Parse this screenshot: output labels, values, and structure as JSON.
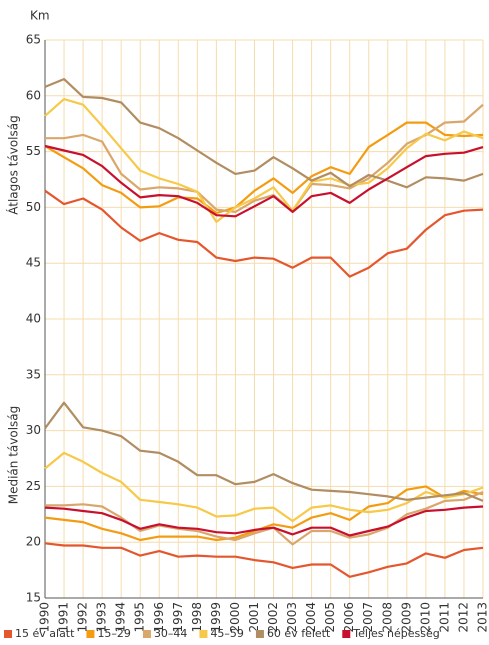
{
  "chart_data": {
    "type": "line",
    "y_unit": "Km",
    "ylabels": [
      "Átlagos távolság",
      "Medián távolság"
    ],
    "categories": [
      1990,
      1991,
      1992,
      1993,
      1994,
      1995,
      1996,
      1997,
      1998,
      1999,
      2000,
      2001,
      2002,
      2003,
      2004,
      2005,
      2006,
      2007,
      2008,
      2009,
      2010,
      2011,
      2012,
      2013
    ],
    "ylim": [
      15,
      65
    ],
    "yticks": [
      15,
      20,
      25,
      30,
      35,
      40,
      45,
      50,
      55,
      60,
      65
    ],
    "grid": true,
    "legend": "bottom",
    "series": [
      {
        "name": "15 év alatt",
        "color": "#e4572e",
        "values": [
          51.5,
          50.3,
          50.8,
          49.8,
          48.2,
          47.0,
          47.7,
          47.1,
          46.9,
          45.5,
          45.2,
          45.5,
          45.4,
          44.6,
          45.5,
          45.5,
          43.8,
          44.6,
          45.9,
          46.3,
          48.0,
          49.3,
          49.7,
          49.8
        ],
        "median_values": [
          19.9,
          19.7,
          19.7,
          19.5,
          19.5,
          18.8,
          19.2,
          18.7,
          18.8,
          18.7,
          18.7,
          18.4,
          18.2,
          17.7,
          18.0,
          18.0,
          16.9,
          17.3,
          17.8,
          18.1,
          19.0,
          18.6,
          19.3,
          19.5
        ]
      },
      {
        "name": "15–29",
        "color": "#f39c12",
        "values": [
          55.5,
          54.5,
          53.5,
          52.0,
          51.3,
          50.0,
          50.1,
          50.9,
          50.8,
          49.5,
          50.0,
          51.5,
          52.6,
          51.3,
          52.8,
          53.6,
          53.0,
          55.4,
          56.5,
          57.6,
          57.6,
          56.5,
          56.4,
          56.5
        ],
        "median_values": [
          22.2,
          22.0,
          21.8,
          21.2,
          20.8,
          20.2,
          20.5,
          20.5,
          20.5,
          20.2,
          20.4,
          21.0,
          21.6,
          21.3,
          22.2,
          22.6,
          22.0,
          23.2,
          23.5,
          24.7,
          25.0,
          24.0,
          24.6,
          24.3
        ]
      },
      {
        "name": "30–44",
        "color": "#d9a66b",
        "values": [
          56.2,
          56.2,
          56.5,
          55.9,
          53.0,
          51.6,
          51.8,
          51.7,
          51.4,
          49.8,
          49.6,
          50.6,
          51.1,
          49.7,
          52.1,
          52.0,
          51.7,
          52.6,
          54.0,
          55.7,
          56.5,
          57.6,
          57.7,
          59.2
        ],
        "median_values": [
          23.3,
          23.3,
          23.4,
          23.2,
          22.2,
          21.0,
          21.5,
          21.2,
          21.0,
          20.5,
          20.2,
          20.8,
          21.3,
          19.8,
          21.0,
          21.0,
          20.4,
          20.7,
          21.3,
          22.5,
          23.0,
          23.7,
          23.8,
          24.5
        ]
      },
      {
        "name": "45–59",
        "color": "#f7c948",
        "values": [
          58.2,
          59.7,
          59.2,
          57.3,
          55.3,
          53.3,
          52.6,
          52.1,
          51.4,
          48.7,
          50.0,
          50.8,
          51.8,
          49.7,
          52.3,
          52.6,
          52.0,
          52.2,
          53.5,
          55.3,
          56.6,
          56.0,
          56.8,
          56.2
        ],
        "median_values": [
          26.6,
          28.0,
          27.2,
          26.2,
          25.4,
          23.8,
          23.6,
          23.4,
          23.1,
          22.3,
          22.4,
          23.0,
          23.1,
          21.9,
          23.1,
          23.3,
          22.9,
          22.7,
          22.9,
          23.5,
          24.5,
          24.0,
          24.3,
          24.9
        ]
      },
      {
        "name": "60 év felett",
        "color": "#b08d62",
        "values": [
          60.8,
          61.5,
          59.9,
          59.8,
          59.4,
          57.6,
          57.1,
          56.2,
          55.1,
          54.0,
          53.0,
          53.3,
          54.5,
          53.5,
          52.4,
          53.1,
          51.9,
          52.9,
          52.4,
          51.8,
          52.7,
          52.6,
          52.4,
          53.0
        ],
        "median_values": [
          30.2,
          32.5,
          30.3,
          30.0,
          29.5,
          28.2,
          28.0,
          27.2,
          26.0,
          26.0,
          25.2,
          25.4,
          26.1,
          25.3,
          24.7,
          24.6,
          24.5,
          24.3,
          24.1,
          23.8,
          24.0,
          24.2,
          24.4,
          23.7
        ]
      },
      {
        "name": "Teljes népesség",
        "color": "#c8102e",
        "values": [
          55.5,
          55.1,
          54.7,
          53.7,
          52.2,
          50.9,
          51.1,
          51.0,
          50.4,
          49.3,
          49.2,
          50.1,
          51.0,
          49.6,
          51.0,
          51.3,
          50.4,
          51.6,
          52.6,
          53.6,
          54.6,
          54.8,
          54.9,
          55.4
        ],
        "median_values": [
          23.1,
          23.0,
          22.8,
          22.6,
          22.0,
          21.2,
          21.6,
          21.3,
          21.2,
          20.9,
          20.8,
          21.1,
          21.3,
          20.7,
          21.3,
          21.3,
          20.6,
          21.0,
          21.4,
          22.2,
          22.8,
          22.9,
          23.1,
          23.2
        ]
      }
    ]
  }
}
